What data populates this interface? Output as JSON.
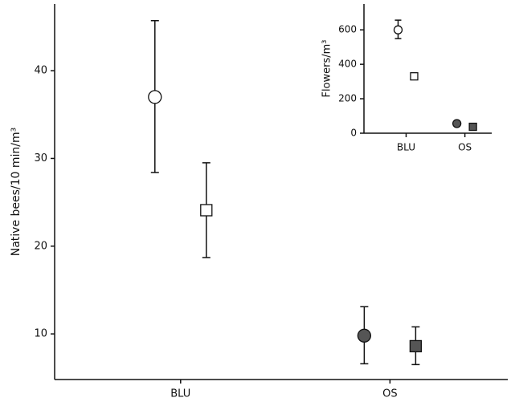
{
  "chart_data": [
    {
      "type": "errorbar",
      "y_label": "Native bees/10 min/m³",
      "categories": [
        "BLU",
        "OS"
      ],
      "colors": [
        "#ffffff",
        "#555555"
      ],
      "ylim": [
        4.8,
        47.6
      ],
      "yticks": [
        10,
        20,
        30,
        40
      ],
      "series": [
        {
          "marker": "circle",
          "values": [
            37.0,
            9.8
          ],
          "low": [
            28.4,
            6.6
          ],
          "high": [
            45.7,
            13.1
          ]
        },
        {
          "marker": "square",
          "values": [
            24.1,
            8.6
          ],
          "low": [
            18.7,
            6.5
          ],
          "high": [
            29.5,
            10.8
          ]
        }
      ]
    },
    {
      "type": "errorbar",
      "y_label": "Flowers/m³",
      "categories": [
        "BLU",
        "OS"
      ],
      "colors": [
        "#ffffff",
        "#555555"
      ],
      "ylim": [
        0,
        750
      ],
      "yticks": [
        0,
        200,
        400,
        600
      ],
      "series": [
        {
          "marker": "circle",
          "values": [
            600,
            56
          ],
          "low": [
            549,
            null
          ],
          "high": [
            656,
            null
          ]
        },
        {
          "marker": "square",
          "values": [
            330,
            37
          ],
          "low": [
            null,
            null
          ],
          "high": [
            null,
            null
          ]
        }
      ]
    }
  ]
}
